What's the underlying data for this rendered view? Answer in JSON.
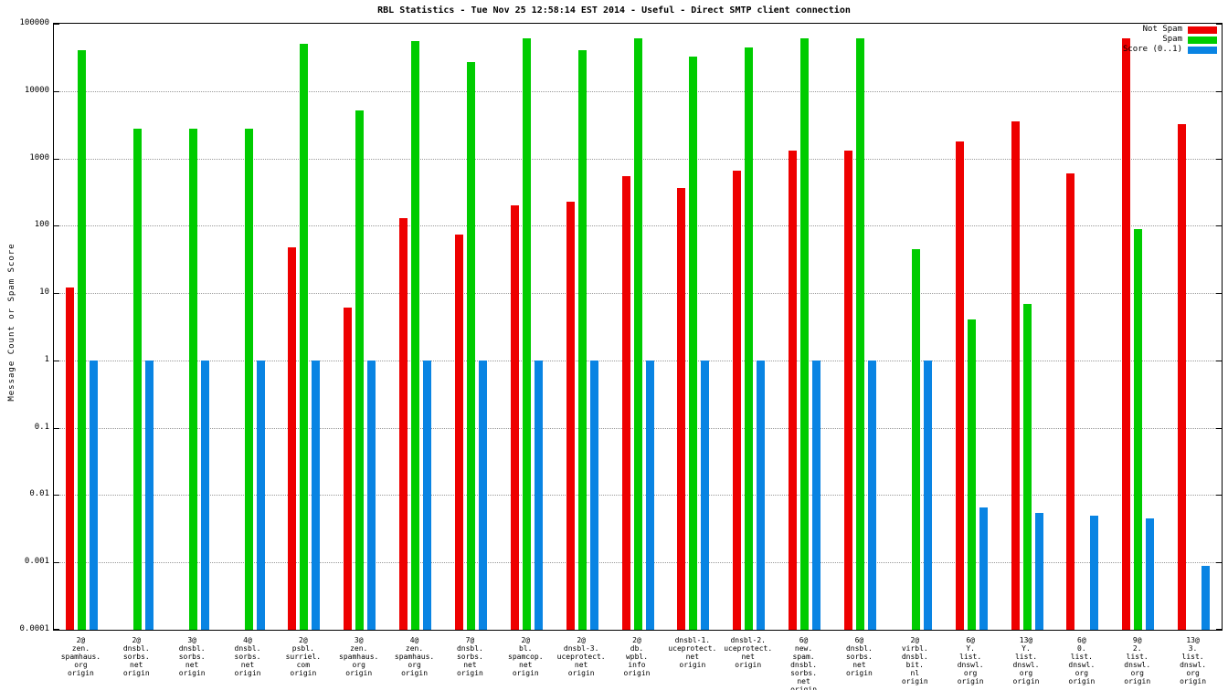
{
  "title": "RBL Statistics - Tue Nov 25 12:58:14 EST 2014 - Useful - Direct SMTP client connection",
  "ylabel": "Message Count or Spam Score",
  "colors": {
    "not_spam": "#ee0000",
    "spam": "#00cc00",
    "score": "#0984e3",
    "grid": "#9a9a9a"
  },
  "chart_data": {
    "type": "bar",
    "scale": "log",
    "ylim": [
      0.0001,
      100000
    ],
    "grid": true,
    "legend_position": "top-right",
    "ytick_labels": [
      "100000",
      "10000",
      "1000",
      "100",
      "10",
      "1",
      "0.1",
      "0.01",
      "0.001",
      "0.0001"
    ],
    "ytick_values": [
      100000,
      10000,
      1000,
      100,
      10,
      1,
      0.1,
      0.01,
      0.001,
      0.0001
    ],
    "categories": [
      [
        "2@",
        "zen.",
        "spamhaus.",
        "org",
        "origin"
      ],
      [
        "2@",
        "dnsbl.",
        "sorbs.",
        "net",
        "origin"
      ],
      [
        "3@",
        "dnsbl.",
        "sorbs.",
        "net",
        "origin"
      ],
      [
        "4@",
        "dnsbl.",
        "sorbs.",
        "net",
        "origin"
      ],
      [
        "2@",
        "psbl.",
        "surriel.",
        "com",
        "origin"
      ],
      [
        "3@",
        "zen.",
        "spamhaus.",
        "org",
        "origin"
      ],
      [
        "4@",
        "zen.",
        "spamhaus.",
        "org",
        "origin"
      ],
      [
        "7@",
        "dnsbl.",
        "sorbs.",
        "net",
        "origin"
      ],
      [
        "2@",
        "bl.",
        "spamcop.",
        "net",
        "origin"
      ],
      [
        "2@",
        "dnsbl-3.",
        "uceprotect.",
        "net",
        "origin"
      ],
      [
        "2@",
        "db.",
        "wpbl.",
        "info",
        "origin"
      ],
      [
        "dnsbl-1.",
        "uceprotect.",
        "net",
        "origin"
      ],
      [
        "dnsbl-2.",
        "uceprotect.",
        "net",
        "origin"
      ],
      [
        "6@",
        "new.",
        "spam.",
        "dnsbl.",
        "sorbs.",
        "net",
        "origin"
      ],
      [
        "6@",
        "dnsbl.",
        "sorbs.",
        "net",
        "origin"
      ],
      [
        "2@",
        "virbl.",
        "dnsbl.",
        "bit.",
        "nl",
        "origin"
      ],
      [
        "6@",
        "Y.",
        "list.",
        "dnswl.",
        "org",
        "origin"
      ],
      [
        "13@",
        "Y.",
        "list.",
        "dnswl.",
        "org",
        "origin"
      ],
      [
        "6@",
        "0.",
        "list.",
        "dnswl.",
        "org",
        "origin"
      ],
      [
        "9@",
        "2.",
        "list.",
        "dnswl.",
        "org",
        "origin"
      ],
      [
        "13@",
        "3.",
        "list.",
        "dnswl.",
        "org",
        "origin"
      ]
    ],
    "series": [
      {
        "name": "Not Spam",
        "color": "#ee0000",
        "values": [
          12,
          0,
          0,
          0,
          48,
          6,
          130,
          75,
          200,
          230,
          550,
          360,
          650,
          1300,
          1300,
          0,
          1800,
          3500,
          600,
          60000,
          3200
        ]
      },
      {
        "name": "Spam",
        "color": "#00cc00",
        "values": [
          40000,
          2800,
          2800,
          2800,
          50000,
          5200,
          55000,
          27000,
          60000,
          40000,
          60000,
          33000,
          45000,
          60000,
          60000,
          45,
          4,
          7,
          0,
          90,
          0
        ]
      },
      {
        "name": "Score (0..1)",
        "color": "#0984e3",
        "values": [
          1,
          1,
          1,
          1,
          1,
          1,
          1,
          1,
          1,
          1,
          1,
          1,
          1,
          1,
          1,
          1,
          0.0065,
          0.0055,
          0.005,
          0.0045,
          0.0009
        ]
      }
    ]
  }
}
